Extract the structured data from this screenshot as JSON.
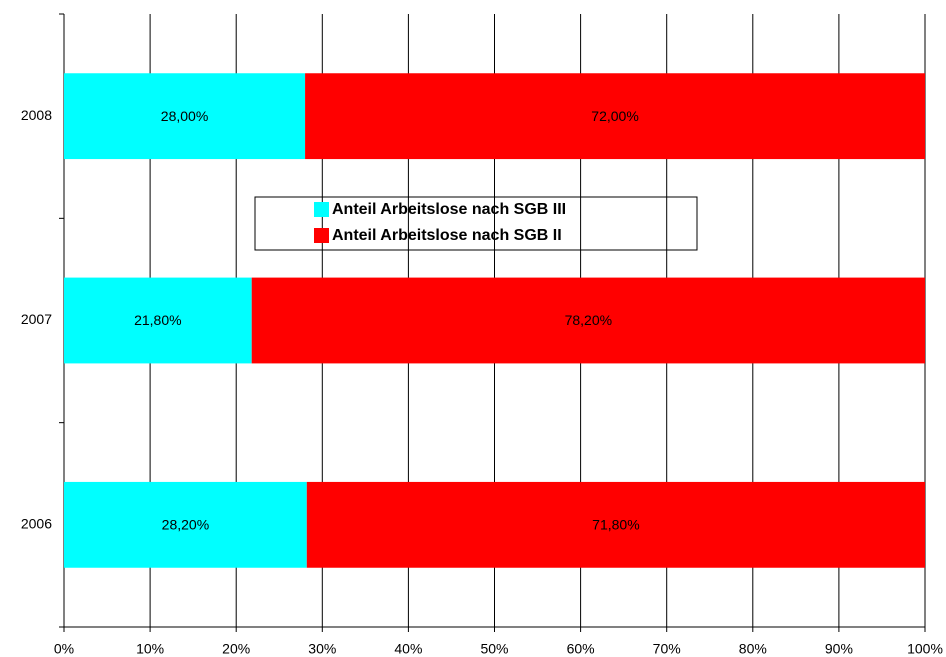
{
  "chart_data": {
    "type": "bar",
    "orientation": "horizontal",
    "stacked": true,
    "categories": [
      "2006",
      "2007",
      "2008"
    ],
    "series": [
      {
        "name": "Anteil Arbeitslose nach SGB III",
        "color": "#00ffff",
        "values": [
          28.2,
          21.8,
          28.0
        ],
        "value_labels": [
          "28,20%",
          "21,80%",
          "28,00%"
        ]
      },
      {
        "name": "Anteil Arbeitslose nach SGB II",
        "color": "#ff0000",
        "values": [
          71.8,
          78.2,
          72.0
        ],
        "value_labels": [
          "71,80%",
          "78,20%",
          "72,00%"
        ]
      }
    ],
    "xlim": [
      0,
      100
    ],
    "xticks": [
      {
        "value": 0,
        "label": "0%"
      },
      {
        "value": 10,
        "label": "10%"
      },
      {
        "value": 20,
        "label": "20%"
      },
      {
        "value": 30,
        "label": "30%"
      },
      {
        "value": 40,
        "label": "40%"
      },
      {
        "value": 50,
        "label": "50%"
      },
      {
        "value": 60,
        "label": "60%"
      },
      {
        "value": 70,
        "label": "70%"
      },
      {
        "value": 80,
        "label": "80%"
      },
      {
        "value": 90,
        "label": "90%"
      },
      {
        "value": 100,
        "label": "100%"
      }
    ],
    "grid": true
  }
}
